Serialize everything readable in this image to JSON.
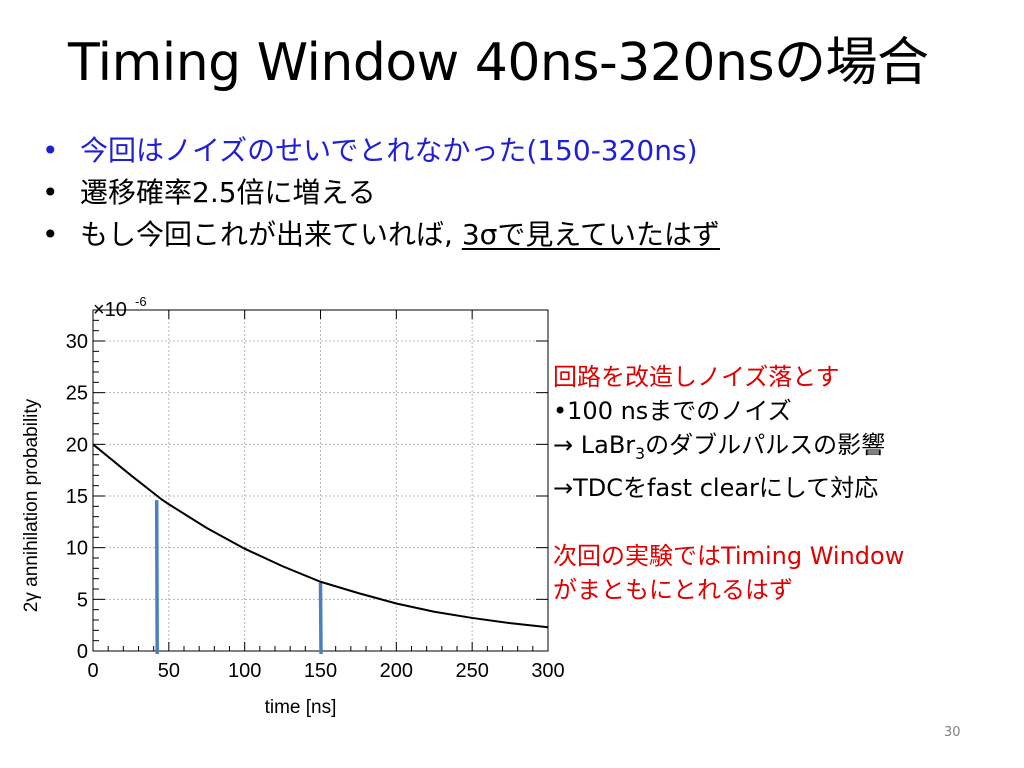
{
  "slide": {
    "title": "Timing Window 40ns-320nsの場合",
    "bullets": [
      {
        "text": "今回はノイズのせいでとれなかった(150-320ns)",
        "color": "#1f1fd6"
      },
      {
        "text": "遷移確率2.5倍に増える",
        "color": "#000000"
      },
      {
        "text_pre": "もし今回これが出来ていれば, ",
        "text_underlined": "3σで見えていたはず",
        "color": "#000000"
      }
    ],
    "bullet_symbol": "•",
    "notes": {
      "heading": "回路を改造しノイズ落とす",
      "lines": [
        "•100 nsまでのノイズ",
        "→ LaBr",
        "→TDCをfast clearにして対応"
      ],
      "labr_sub": "3",
      "labr_suffix": "のダブルパルスの影響",
      "next1": "次回の実験ではTiming Window",
      "next2": "がまともにとれるはず",
      "accent_color": "#e10000"
    },
    "page_number": "30"
  },
  "chart_data": {
    "type": "line",
    "title": "",
    "xlabel": "time [ns]",
    "ylabel": "2γ annihilation probability",
    "y_multiplier": "×10",
    "y_multiplier_exp": "-6",
    "xlim": [
      0,
      300
    ],
    "ylim": [
      0,
      33
    ],
    "x_ticks": [
      0,
      50,
      100,
      150,
      200,
      250,
      300
    ],
    "y_ticks": [
      0,
      5,
      10,
      15,
      20,
      25,
      30
    ],
    "grid": true,
    "series": [
      {
        "color": "#000000",
        "x": [
          0,
          25,
          45,
          50,
          75,
          100,
          125,
          150,
          175,
          200,
          225,
          250,
          275,
          300
        ],
        "y": [
          20.0,
          17.0,
          14.7,
          14.2,
          11.9,
          9.9,
          8.2,
          6.7,
          5.6,
          4.6,
          3.8,
          3.2,
          2.7,
          2.3
        ]
      }
    ],
    "markers": [
      {
        "x": 42,
        "y": 14.6,
        "color": "#4a7fc4"
      },
      {
        "x": 150,
        "y": 6.6,
        "color": "#4a7fc4"
      }
    ]
  }
}
